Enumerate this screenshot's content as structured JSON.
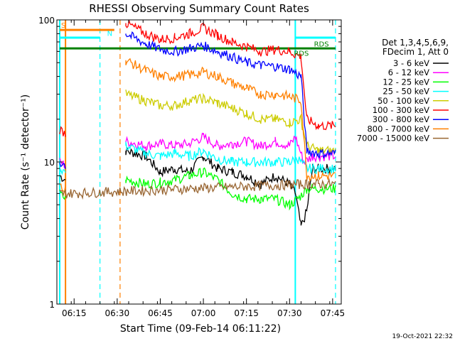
{
  "chart_data": {
    "type": "line",
    "title": "RHESSI Observing Summary Count Rates",
    "xlabel": "Start Time (09-Feb-14 06:11:22)",
    "ylabel": "Count Rate (s⁻¹ detector⁻¹)",
    "y_scale": "log",
    "ylim": [
      1,
      100
    ],
    "y_ticks": [
      {
        "value": 1,
        "label": "1"
      },
      {
        "value": 10,
        "label": "10"
      },
      {
        "value": 100,
        "label": "100"
      }
    ],
    "xlim": [
      "06:09",
      "07:48"
    ],
    "x_ticks": [
      {
        "value": "06:15",
        "label": "06:15"
      },
      {
        "value": "06:30",
        "label": "06:30"
      },
      {
        "value": "06:45",
        "label": "06:45"
      },
      {
        "value": "07:00",
        "label": "07:00"
      },
      {
        "value": "07:15",
        "label": "07:15"
      },
      {
        "value": "07:30",
        "label": "07:30"
      },
      {
        "value": "07:45",
        "label": "07:45"
      }
    ],
    "legend_header": [
      "Det 1,3,4,5,6,9,",
      "FDecim 1, Att 0"
    ],
    "legend_position": "right",
    "series": [
      {
        "name": "3 - 6 keV",
        "color": "#000000",
        "points": [
          [
            "06:10",
            8
          ],
          [
            "06:12",
            7.5
          ],
          [
            "06:33",
            12
          ],
          [
            "06:40",
            11
          ],
          [
            "06:45",
            8.5
          ],
          [
            "06:50",
            9
          ],
          [
            "06:55",
            8.5
          ],
          [
            "07:00",
            11
          ],
          [
            "07:05",
            9
          ],
          [
            "07:10",
            8.5
          ],
          [
            "07:15",
            8
          ],
          [
            "07:20",
            7
          ],
          [
            "07:25",
            8
          ],
          [
            "07:30",
            7
          ],
          [
            "07:32",
            6
          ],
          [
            "07:34",
            3.5
          ],
          [
            "07:36",
            4.5
          ],
          [
            "07:38",
            9
          ],
          [
            "07:40",
            9
          ],
          [
            "07:46",
            9
          ]
        ]
      },
      {
        "name": "6 - 12 keV",
        "color": "#ff00ff",
        "points": [
          [
            "06:10",
            10
          ],
          [
            "06:12",
            9.5
          ],
          [
            "06:33",
            14
          ],
          [
            "06:40",
            13
          ],
          [
            "06:45",
            13.5
          ],
          [
            "06:50",
            13
          ],
          [
            "06:55",
            13.5
          ],
          [
            "07:00",
            15
          ],
          [
            "07:05",
            13
          ],
          [
            "07:10",
            13.5
          ],
          [
            "07:15",
            14
          ],
          [
            "07:20",
            13
          ],
          [
            "07:25",
            14
          ],
          [
            "07:30",
            13
          ],
          [
            "07:32",
            15
          ],
          [
            "07:35",
            10
          ],
          [
            "07:38",
            11
          ],
          [
            "07:46",
            11
          ]
        ]
      },
      {
        "name": "12 - 25 keV",
        "color": "#00ff00",
        "points": [
          [
            "06:10",
            6
          ],
          [
            "06:12",
            5.5
          ],
          [
            "06:33",
            7.5
          ],
          [
            "06:40",
            7
          ],
          [
            "06:45",
            7.2
          ],
          [
            "06:50",
            7.5
          ],
          [
            "06:55",
            8
          ],
          [
            "07:00",
            8.5
          ],
          [
            "07:05",
            7.5
          ],
          [
            "07:10",
            6
          ],
          [
            "07:15",
            5.5
          ],
          [
            "07:20",
            5.5
          ],
          [
            "07:25",
            5.5
          ],
          [
            "07:30",
            5
          ],
          [
            "07:33",
            5.5
          ],
          [
            "07:36",
            6.5
          ],
          [
            "07:40",
            6.5
          ],
          [
            "07:46",
            6.5
          ]
        ]
      },
      {
        "name": "25 - 50 keV",
        "color": "#00ffff",
        "points": [
          [
            "06:10",
            9
          ],
          [
            "06:12",
            8.5
          ],
          [
            "06:33",
            13
          ],
          [
            "06:40",
            11.5
          ],
          [
            "06:45",
            11
          ],
          [
            "06:50",
            11.5
          ],
          [
            "06:55",
            11
          ],
          [
            "07:00",
            12
          ],
          [
            "07:05",
            10.5
          ],
          [
            "07:10",
            10
          ],
          [
            "07:15",
            10
          ],
          [
            "07:20",
            10
          ],
          [
            "07:25",
            10
          ],
          [
            "07:30",
            10
          ],
          [
            "07:33",
            10.5
          ],
          [
            "07:36",
            9
          ],
          [
            "07:40",
            9
          ],
          [
            "07:46",
            9
          ]
        ]
      },
      {
        "name": "50 - 100 keV",
        "color": "#cccc00",
        "points": [
          [
            "06:33",
            30
          ],
          [
            "06:40",
            27
          ],
          [
            "06:45",
            25
          ],
          [
            "06:50",
            25
          ],
          [
            "06:55",
            27
          ],
          [
            "07:00",
            28
          ],
          [
            "07:05",
            26
          ],
          [
            "07:10",
            24
          ],
          [
            "07:15",
            22
          ],
          [
            "07:20",
            20
          ],
          [
            "07:25",
            20
          ],
          [
            "07:30",
            19
          ],
          [
            "07:34",
            20
          ],
          [
            "07:36",
            13
          ],
          [
            "07:40",
            12
          ],
          [
            "07:46",
            12
          ]
        ]
      },
      {
        "name": "100 - 300 keV",
        "color": "#ff0000",
        "points": [
          [
            "06:10",
            17
          ],
          [
            "06:12",
            16
          ],
          [
            "06:33",
            95
          ],
          [
            "06:40",
            80
          ],
          [
            "06:45",
            73
          ],
          [
            "06:50",
            75
          ],
          [
            "06:55",
            80
          ],
          [
            "07:00",
            88
          ],
          [
            "07:05",
            78
          ],
          [
            "07:10",
            70
          ],
          [
            "07:15",
            65
          ],
          [
            "07:20",
            60
          ],
          [
            "07:25",
            62
          ],
          [
            "07:30",
            60
          ],
          [
            "07:34",
            55
          ],
          [
            "07:36",
            20
          ],
          [
            "07:40",
            18
          ],
          [
            "07:46",
            18
          ]
        ]
      },
      {
        "name": "300 - 800 keV",
        "color": "#0000ff",
        "points": [
          [
            "06:10",
            10
          ],
          [
            "06:12",
            9.5
          ],
          [
            "06:33",
            80
          ],
          [
            "06:40",
            68
          ],
          [
            "06:45",
            62
          ],
          [
            "06:50",
            60
          ],
          [
            "06:55",
            63
          ],
          [
            "07:00",
            66
          ],
          [
            "07:05",
            60
          ],
          [
            "07:10",
            55
          ],
          [
            "07:15",
            50
          ],
          [
            "07:20",
            48
          ],
          [
            "07:25",
            47
          ],
          [
            "07:30",
            45
          ],
          [
            "07:34",
            40
          ],
          [
            "07:36",
            12
          ],
          [
            "07:40",
            11.5
          ],
          [
            "07:46",
            11.5
          ]
        ]
      },
      {
        "name": "800 - 7000 keV",
        "color": "#ff8000",
        "points": [
          [
            "06:10",
            7
          ],
          [
            "06:12",
            6.5
          ],
          [
            "06:33",
            52
          ],
          [
            "06:40",
            44
          ],
          [
            "06:45",
            40
          ],
          [
            "06:50",
            40
          ],
          [
            "06:55",
            41
          ],
          [
            "07:00",
            43
          ],
          [
            "07:05",
            40
          ],
          [
            "07:10",
            36
          ],
          [
            "07:15",
            33
          ],
          [
            "07:20",
            30
          ],
          [
            "07:25",
            30
          ],
          [
            "07:30",
            29
          ],
          [
            "07:34",
            27
          ],
          [
            "07:36",
            8
          ],
          [
            "07:40",
            8
          ],
          [
            "07:46",
            8
          ]
        ]
      },
      {
        "name": "7000 - 15000 keV",
        "color": "#996633",
        "points": [
          [
            "06:10",
            6
          ],
          [
            "06:12",
            6
          ],
          [
            "07:36",
            7
          ],
          [
            "07:40",
            7
          ],
          [
            "07:46",
            7
          ]
        ]
      }
    ],
    "level_lines": [
      {
        "color": "#008000",
        "value": 63,
        "from": "06:10",
        "to": "07:46"
      },
      {
        "color": "#ff8000",
        "value": 85,
        "from": "06:10",
        "to": "06:29"
      },
      {
        "color": "#00ffff",
        "value": 75,
        "from": "06:10",
        "to": "06:24"
      },
      {
        "color": "#00ffff",
        "value": 75,
        "from": "07:32",
        "to": "07:46"
      }
    ],
    "annotations": [
      {
        "text": "S",
        "x": "06:10",
        "y": 88,
        "color": "#ff8000"
      },
      {
        "text": "N",
        "x": "06:26",
        "y": 77,
        "color": "#00ffff"
      },
      {
        "text": "RDS",
        "x": "07:38",
        "y": 65,
        "color": "#008000"
      },
      {
        "text": "RDS",
        "x": "07:31",
        "y": 56,
        "color": "#008000"
      }
    ],
    "vertical_markers": [
      {
        "x": "06:10",
        "color": "#00ffff",
        "style": "solid"
      },
      {
        "x": "06:24",
        "color": "#00ffff",
        "style": "dashed"
      },
      {
        "x": "06:31",
        "color": "#ff8000",
        "style": "dashed"
      },
      {
        "x": "06:12",
        "color": "#ff8000",
        "style": "solid"
      },
      {
        "x": "07:32",
        "color": "#00ffff",
        "style": "solid"
      },
      {
        "x": "07:46",
        "color": "#00ffff",
        "style": "dashed"
      }
    ],
    "footer_date": "19-Oct-2021 22:32"
  }
}
